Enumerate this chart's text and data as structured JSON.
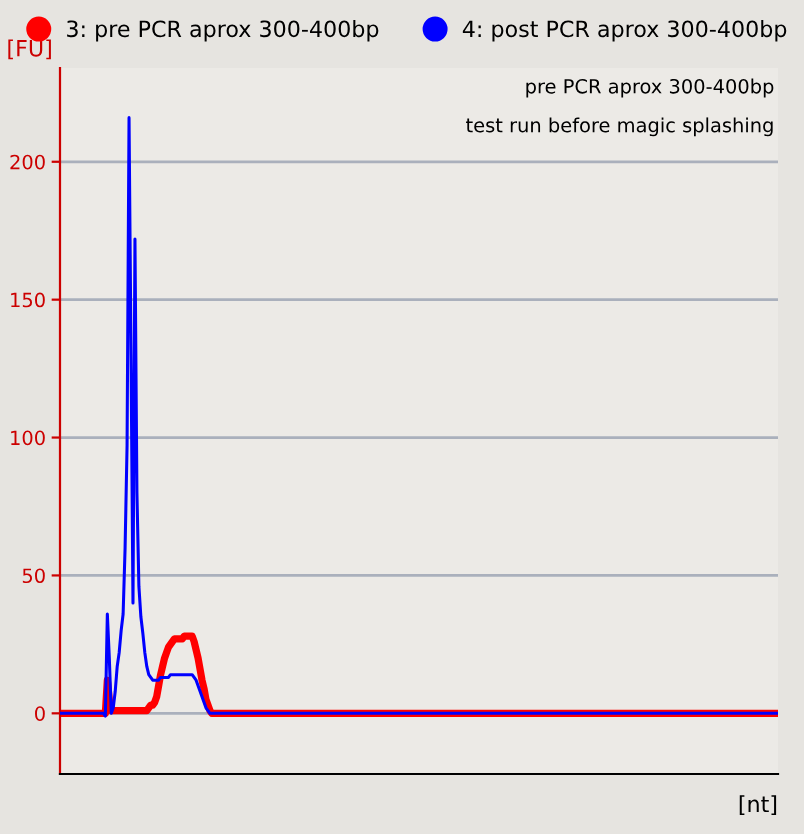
{
  "chart_data": {
    "type": "line",
    "xlabel": "[nt]",
    "ylabel": "[FU]",
    "annotations": [
      "pre PCR aprox 300-400bp",
      "test run before magic splashing"
    ],
    "categories": [
      null,
      null,
      null,
      null,
      null,
      null,
      null,
      null,
      null,
      null,
      null,
      null,
      null,
      null,
      null,
      null,
      null,
      null,
      null,
      null,
      null,
      null,
      null,
      null,
      null,
      null,
      null,
      null,
      null,
      null,
      null,
      null,
      null,
      null,
      null,
      null,
      null,
      null,
      null,
      null,
      null,
      null,
      null,
      null,
      null,
      null,
      null,
      null,
      null,
      null,
      null,
      null,
      null,
      null,
      null,
      null,
      null,
      null,
      null,
      null,
      null,
      null,
      null,
      null,
      null,
      null,
      null,
      null,
      null,
      null,
      null,
      null,
      null,
      null,
      null,
      null,
      null,
      null,
      null,
      null,
      null,
      null,
      null,
      null,
      null,
      null,
      null,
      null,
      null,
      null,
      null,
      null,
      null,
      null,
      null,
      null,
      null,
      null,
      null,
      null,
      null,
      null,
      null,
      null,
      null,
      null,
      null,
      null,
      null,
      null,
      null,
      null,
      null,
      null,
      null,
      null,
      null,
      null,
      null,
      null,
      null,
      null,
      null,
      null,
      null,
      null,
      null,
      null,
      null,
      null,
      null,
      null,
      null,
      null,
      null,
      null,
      null,
      null,
      null,
      null,
      null,
      null,
      null,
      null,
      null,
      null,
      null,
      null,
      null,
      null,
      null,
      null,
      null,
      null,
      null,
      null,
      null,
      null,
      null,
      null,
      null,
      null,
      null,
      null,
      null,
      null,
      null,
      null,
      null,
      null,
      null,
      null,
      null,
      null,
      null,
      null,
      null,
      null,
      null,
      null,
      null,
      null,
      null,
      null,
      null,
      null,
      null,
      null,
      null,
      null,
      null,
      null,
      null,
      null,
      null,
      null,
      null,
      null,
      null,
      null,
      null,
      null,
      null,
      null,
      null,
      null,
      null,
      null,
      null,
      null,
      null,
      null,
      null,
      null,
      null,
      null,
      null,
      null,
      null,
      null,
      null,
      null,
      null,
      null,
      null,
      null,
      null,
      null,
      null,
      null,
      null,
      null,
      null,
      null,
      null,
      null,
      null,
      null,
      null,
      null,
      null,
      null,
      null,
      null,
      null,
      null,
      null,
      null,
      null,
      null,
      null,
      null,
      null,
      null,
      null,
      null,
      null,
      null,
      null,
      null,
      null,
      null,
      null,
      null,
      null,
      null,
      null,
      null,
      null,
      null,
      null,
      null,
      null,
      null,
      null,
      null,
      null,
      null,
      null,
      null,
      null,
      null,
      null,
      null,
      null,
      null,
      null,
      null,
      null,
      null,
      null,
      null,
      null,
      null,
      null,
      null,
      null,
      null,
      null,
      null,
      null,
      null,
      null,
      null,
      null,
      null,
      null,
      null,
      null,
      null,
      null,
      null,
      null,
      null,
      null,
      null,
      null,
      null,
      null,
      null,
      null,
      null,
      null,
      null,
      null,
      null,
      null,
      null,
      null,
      null,
      null,
      null,
      null,
      null,
      null,
      null,
      null,
      null,
      null,
      null,
      null,
      null,
      null,
      null,
      null,
      null,
      null,
      null,
      null,
      null,
      null,
      null,
      null,
      null,
      null,
      null,
      null,
      null,
      null,
      null,
      null,
      null,
      null,
      null,
      null
    ],
    "series": [
      {
        "name": "3: pre PCR aprox 300-400bp",
        "color": "#ff0000",
        "values": [
          0,
          0,
          0,
          0,
          0,
          0,
          0,
          0,
          0,
          0,
          0,
          0,
          0,
          0,
          0,
          0,
          0,
          0,
          0,
          0,
          0,
          0,
          0,
          0,
          12,
          5,
          1,
          1,
          1,
          1,
          1,
          1,
          1,
          1,
          1,
          1,
          1,
          1,
          1,
          1,
          1,
          1,
          1,
          1,
          1,
          2,
          3,
          3,
          4,
          6,
          10,
          14,
          17,
          20,
          22,
          24,
          25,
          26,
          27,
          27,
          27,
          27,
          27,
          28,
          28,
          28,
          28,
          28,
          26,
          23,
          20,
          16,
          12,
          9,
          5,
          3,
          1,
          0,
          0,
          0,
          0,
          0,
          0,
          0,
          0,
          0,
          0,
          0,
          0,
          0,
          0,
          0,
          0,
          0,
          0,
          0,
          0,
          0,
          0,
          0,
          0,
          0,
          0,
          0,
          0,
          0,
          0,
          0,
          0,
          0,
          0,
          0,
          0,
          0,
          0,
          0,
          0,
          0,
          0,
          0,
          0,
          0,
          0,
          0,
          0,
          0,
          0,
          0,
          0,
          0,
          0,
          0,
          0,
          0,
          0,
          0,
          0,
          0,
          0,
          0,
          0,
          0,
          0,
          0,
          0,
          0,
          0,
          0,
          0,
          0,
          0,
          0,
          0,
          0,
          0,
          0,
          0,
          0,
          0,
          0,
          0,
          0,
          0,
          0,
          0,
          0,
          0,
          0,
          0,
          0,
          0,
          0,
          0,
          0,
          0,
          0,
          0,
          0,
          0,
          0,
          0,
          0,
          0,
          0,
          0,
          0,
          0,
          0,
          0,
          0,
          0,
          0,
          0,
          0,
          0,
          0,
          0,
          0,
          0,
          0,
          0,
          0,
          0,
          0,
          0,
          0,
          0,
          0,
          0,
          0,
          0,
          0,
          0,
          0,
          0,
          0,
          0,
          0,
          0,
          0,
          0,
          0,
          0,
          0,
          0,
          0,
          0,
          0,
          0,
          0,
          0,
          0,
          0,
          0,
          0,
          0,
          0,
          0,
          0,
          0,
          0,
          0,
          0,
          0,
          0,
          0,
          0,
          0,
          0,
          0,
          0,
          0,
          0,
          0,
          0,
          0,
          0,
          0,
          0,
          0,
          0,
          0,
          0,
          0,
          0,
          0,
          0,
          0,
          0,
          0,
          0,
          0,
          0,
          0,
          0,
          0,
          0,
          0,
          0,
          0,
          0,
          0,
          0,
          0,
          0,
          0,
          0,
          0,
          0,
          0,
          0,
          0,
          0,
          0,
          0,
          0,
          0,
          0,
          0,
          0,
          0,
          0,
          0,
          0,
          0,
          0,
          0,
          0,
          0,
          0,
          0,
          0,
          0,
          0,
          0,
          0,
          0,
          0,
          0,
          0,
          0,
          0,
          0,
          0,
          0,
          0,
          0,
          0,
          0,
          0,
          0,
          0,
          0,
          0,
          0,
          0,
          0,
          0,
          0,
          0,
          0,
          0,
          0,
          0,
          0,
          0,
          0,
          0,
          0,
          0,
          0,
          0,
          0,
          0,
          0,
          0,
          0,
          0,
          0,
          0,
          0,
          0,
          0,
          0,
          0
        ]
      },
      {
        "name": "4: post PCR aprox 300-400bp",
        "color": "#0000ff",
        "values": [
          0,
          0,
          0,
          0,
          0,
          0,
          0,
          0,
          0,
          0,
          0,
          0,
          0,
          0,
          0,
          0,
          0,
          0,
          0,
          0,
          0,
          0,
          0,
          -1,
          36,
          20,
          0,
          2,
          8,
          17,
          22,
          30,
          36,
          60,
          97,
          216,
          130,
          40,
          172,
          80,
          46,
          35,
          29,
          22,
          17,
          14,
          13,
          12,
          12,
          12,
          12,
          13,
          13,
          13,
          13,
          13,
          14,
          14,
          14,
          14,
          14,
          14,
          14,
          14,
          14,
          14,
          14,
          14,
          13,
          12,
          10,
          8,
          6,
          4,
          2,
          1,
          0,
          0,
          0,
          0,
          0,
          0,
          0,
          0,
          0,
          0,
          0,
          0,
          0,
          0,
          0,
          0,
          0,
          0,
          0,
          0,
          0,
          0,
          0,
          0,
          0,
          0,
          0,
          0,
          0,
          0,
          0,
          0,
          0,
          0,
          0,
          0,
          0,
          0,
          0,
          0,
          0,
          0,
          0,
          0,
          0,
          0,
          0,
          0,
          0,
          0,
          0,
          0,
          0,
          0,
          0,
          0,
          0,
          0,
          0,
          0,
          0,
          0,
          0,
          0,
          0,
          0,
          0,
          0,
          0,
          0,
          0,
          0,
          0,
          0,
          0,
          0,
          0,
          0,
          0,
          0,
          0,
          0,
          0,
          0,
          0,
          0,
          0,
          0,
          0,
          0,
          0,
          0,
          0,
          0,
          0,
          0,
          0,
          0,
          0,
          0,
          0,
          0,
          0,
          0,
          0,
          0,
          0,
          0,
          0,
          0,
          0,
          0,
          0,
          0,
          0,
          0,
          0,
          0,
          0,
          0,
          0,
          0,
          0,
          0,
          0,
          0,
          0,
          0,
          0,
          0,
          0,
          0,
          0,
          0,
          0,
          0,
          0,
          0,
          0,
          0,
          0,
          0,
          0,
          0,
          0,
          0,
          0,
          0,
          0,
          0,
          0,
          0,
          0,
          0,
          0,
          0,
          0,
          0,
          0,
          0,
          0,
          0,
          0,
          0,
          0,
          0,
          0,
          0,
          0,
          0,
          0,
          0,
          0,
          0,
          0,
          0,
          0,
          0,
          0,
          0,
          0,
          0,
          0,
          0,
          0,
          0,
          0,
          0,
          0,
          0,
          0,
          0,
          0,
          0,
          0,
          0,
          0,
          0,
          0,
          0,
          0,
          0,
          0,
          0,
          0,
          0,
          0,
          0,
          0,
          0,
          0,
          0,
          0,
          0,
          0,
          0,
          0,
          0,
          0,
          0,
          0,
          0,
          0,
          0,
          0,
          0,
          0,
          0,
          0,
          0,
          0,
          0,
          0,
          0,
          0,
          0,
          0,
          0,
          0,
          0,
          0,
          0,
          0,
          0,
          0,
          0,
          0,
          0,
          0,
          0,
          0,
          0,
          0,
          0,
          0,
          0,
          0,
          0,
          0,
          0,
          0,
          0,
          0,
          0,
          0,
          0,
          0,
          0,
          0,
          0,
          0,
          0,
          0,
          0,
          0,
          0,
          0,
          0,
          0,
          0,
          0,
          0,
          0,
          0,
          0,
          0,
          0,
          0,
          0
        ]
      }
    ],
    "ylim": [
      -22,
      234
    ],
    "yticks": [
      0,
      50,
      100,
      150,
      200
    ],
    "grid": "y",
    "legend": "top",
    "tick_labels": "y",
    "marker": "none",
    "line_style": "solid"
  }
}
